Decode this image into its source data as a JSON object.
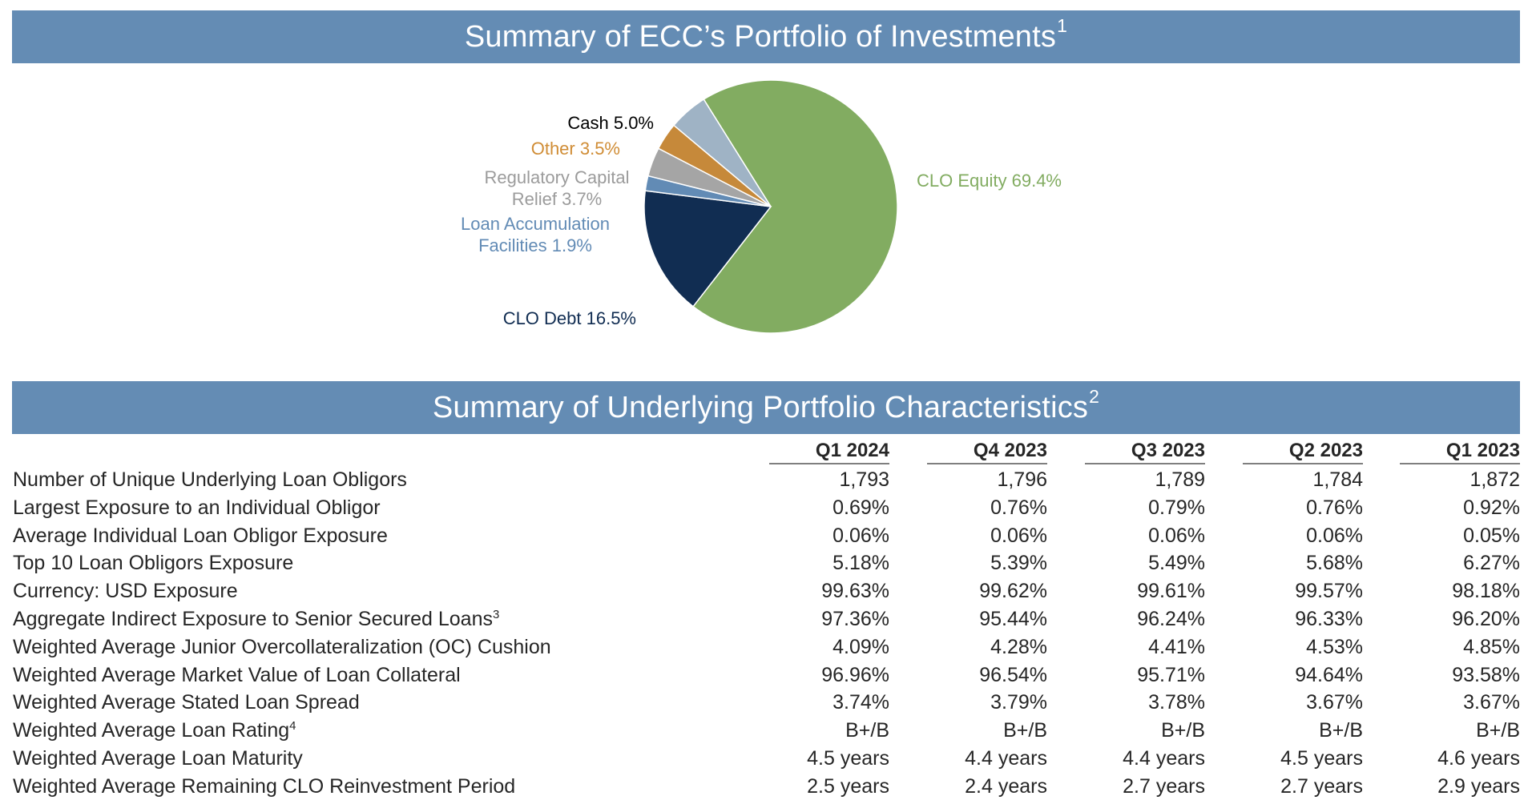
{
  "top_banner": {
    "title": "Summary of ECC’s Portfolio of Investments",
    "footnote": "1"
  },
  "bottom_banner": {
    "title": "Summary of Underlying Portfolio Characteristics",
    "footnote": "2"
  },
  "chart_data": {
    "type": "pie",
    "title": "Summary of ECC’s Portfolio of Investments",
    "slices": [
      {
        "name": "CLO Equity",
        "value": 69.4,
        "label": "CLO Equity 69.4%",
        "color": "#82ac61"
      },
      {
        "name": "CLO Debt",
        "value": 16.5,
        "label": "CLO Debt 16.5%",
        "color": "#112d52"
      },
      {
        "name": "Loan Accumulation Facilities",
        "value": 1.9,
        "label_lines": [
          "Loan Accumulation",
          "Facilities 1.9%"
        ],
        "color": "#628bb5"
      },
      {
        "name": "Regulatory Capital Relief",
        "value": 3.7,
        "label_lines": [
          "Regulatory Capital",
          "Relief 3.7%"
        ],
        "color": "#a5a5a5",
        "text_color": "#9b9b9b"
      },
      {
        "name": "Other",
        "value": 3.5,
        "label": "Other 3.5%",
        "color": "#c6893a",
        "text_color": "#d08d36"
      },
      {
        "name": "Cash",
        "value": 5.0,
        "label": "Cash 5.0%",
        "color": "#9fb3c5",
        "text_color": "#000000"
      }
    ]
  },
  "table": {
    "columns": [
      "Q1 2024",
      "Q4 2023",
      "Q3 2023",
      "Q2 2023",
      "Q1 2023"
    ],
    "rows": [
      {
        "label": "Number of Unique Underlying Loan Obligors",
        "values": [
          "1,793",
          "1,796",
          "1,789",
          "1,784",
          "1,872"
        ]
      },
      {
        "label": "Largest Exposure to an Individual Obligor",
        "values": [
          "0.69%",
          "0.76%",
          "0.79%",
          "0.76%",
          "0.92%"
        ]
      },
      {
        "label": "Average Individual Loan Obligor Exposure",
        "values": [
          "0.06%",
          "0.06%",
          "0.06%",
          "0.06%",
          "0.05%"
        ]
      },
      {
        "label": "Top 10 Loan Obligors Exposure",
        "values": [
          "5.18%",
          "5.39%",
          "5.49%",
          "5.68%",
          "6.27%"
        ]
      },
      {
        "label": "Currency: USD Exposure",
        "values": [
          "99.63%",
          "99.62%",
          "99.61%",
          "99.57%",
          "98.18%"
        ]
      },
      {
        "label": "Aggregate Indirect Exposure to Senior Secured Loans",
        "footnote": "3",
        "values": [
          "97.36%",
          "95.44%",
          "96.24%",
          "96.33%",
          "96.20%"
        ]
      },
      {
        "label": "Weighted Average Junior Overcollateralization (OC) Cushion",
        "values": [
          "4.09%",
          "4.28%",
          "4.41%",
          "4.53%",
          "4.85%"
        ]
      },
      {
        "label": "Weighted Average Market Value of Loan Collateral",
        "values": [
          "96.96%",
          "96.54%",
          "95.71%",
          "94.64%",
          "93.58%"
        ]
      },
      {
        "label": "Weighted Average Stated Loan Spread",
        "values": [
          "3.74%",
          "3.79%",
          "3.78%",
          "3.67%",
          "3.67%"
        ]
      },
      {
        "label": "Weighted Average Loan Rating",
        "footnote": "4",
        "values": [
          "B+/B",
          "B+/B",
          "B+/B",
          "B+/B",
          "B+/B"
        ]
      },
      {
        "label": "Weighted Average Loan Maturity",
        "values": [
          "4.5 years",
          "4.4 years",
          "4.4 years",
          "4.5 years",
          "4.6 years"
        ]
      },
      {
        "label": "Weighted Average Remaining CLO Reinvestment Period",
        "values": [
          "2.5 years",
          "2.4 years",
          "2.7 years",
          "2.7 years",
          "2.9 years"
        ]
      }
    ]
  }
}
